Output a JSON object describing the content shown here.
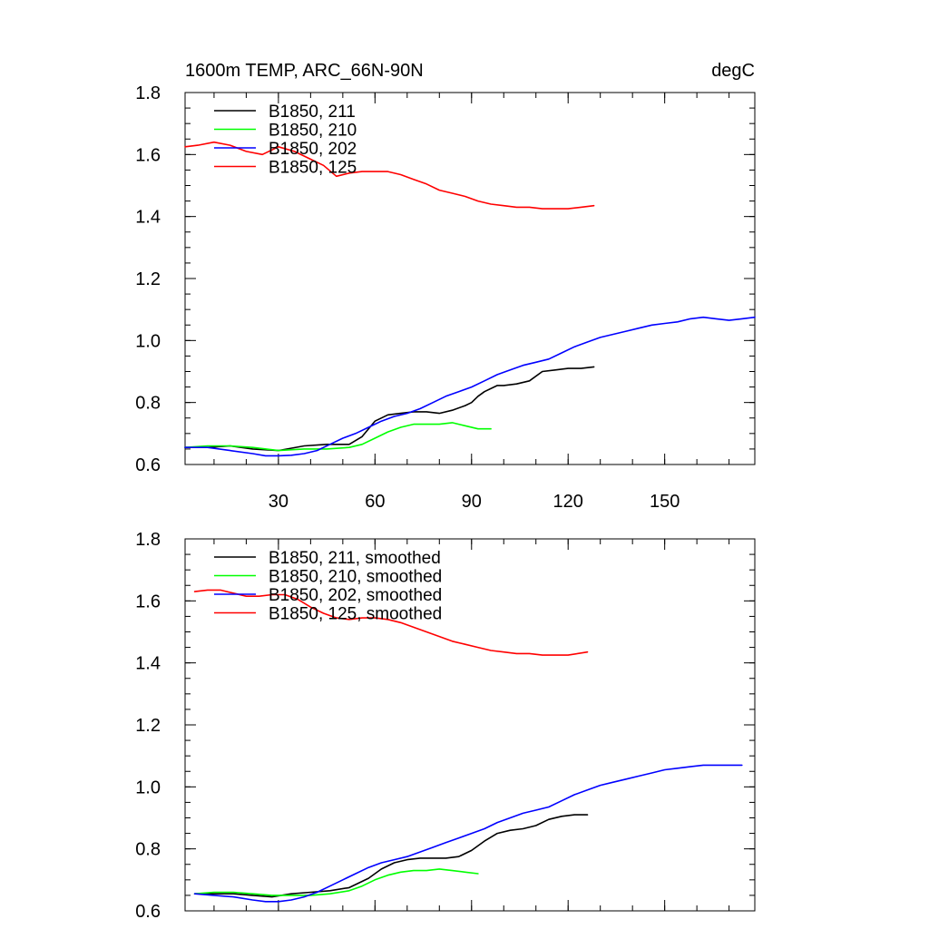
{
  "chart_data": [
    {
      "type": "line",
      "title": "1600m TEMP, ARC_66N-90N",
      "units": "degC",
      "xlim": [
        1,
        178
      ],
      "ylim": [
        0.6,
        1.8
      ],
      "xticks": [
        30,
        60,
        90,
        120,
        150
      ],
      "xtick_labels": [
        "30",
        "60",
        "90",
        "120",
        "150"
      ],
      "yticks": [
        0.6,
        0.8,
        1.0,
        1.2,
        1.4,
        1.6,
        1.8
      ],
      "ytick_labels": [
        "0.6",
        "0.8",
        "1.0",
        "1.2",
        "1.4",
        "1.6",
        "1.8"
      ],
      "legend_position": "top-left",
      "series": [
        {
          "name": "B1850, 211",
          "color": "#000000",
          "x": [
            1,
            8,
            15,
            22,
            30,
            38,
            45,
            52,
            56,
            60,
            64,
            68,
            72,
            76,
            80,
            84,
            88,
            90,
            92,
            94,
            98,
            100,
            104,
            108,
            112,
            116,
            120,
            124,
            128
          ],
          "y": [
            0.655,
            0.655,
            0.66,
            0.65,
            0.645,
            0.66,
            0.665,
            0.665,
            0.69,
            0.74,
            0.76,
            0.765,
            0.77,
            0.77,
            0.765,
            0.775,
            0.79,
            0.8,
            0.82,
            0.835,
            0.855,
            0.855,
            0.86,
            0.87,
            0.9,
            0.905,
            0.91,
            0.91,
            0.915
          ]
        },
        {
          "name": "B1850, 210",
          "color": "#00ff00",
          "x": [
            1,
            8,
            15,
            22,
            30,
            38,
            45,
            52,
            56,
            60,
            64,
            68,
            72,
            76,
            80,
            84,
            88,
            92,
            96
          ],
          "y": [
            0.655,
            0.66,
            0.66,
            0.655,
            0.645,
            0.65,
            0.65,
            0.655,
            0.665,
            0.685,
            0.705,
            0.72,
            0.73,
            0.73,
            0.73,
            0.735,
            0.725,
            0.715,
            0.715
          ]
        },
        {
          "name": "B1850, 202",
          "color": "#0000ff",
          "x": [
            1,
            8,
            15,
            22,
            26,
            30,
            34,
            38,
            42,
            46,
            50,
            54,
            58,
            62,
            66,
            70,
            74,
            78,
            82,
            86,
            90,
            94,
            98,
            102,
            106,
            110,
            114,
            118,
            122,
            126,
            130,
            134,
            138,
            142,
            146,
            150,
            154,
            158,
            162,
            166,
            170,
            174,
            178
          ],
          "y": [
            0.655,
            0.655,
            0.645,
            0.635,
            0.628,
            0.628,
            0.63,
            0.635,
            0.645,
            0.665,
            0.685,
            0.7,
            0.72,
            0.74,
            0.755,
            0.765,
            0.78,
            0.8,
            0.82,
            0.835,
            0.85,
            0.87,
            0.89,
            0.905,
            0.92,
            0.93,
            0.94,
            0.96,
            0.98,
            0.995,
            1.01,
            1.02,
            1.03,
            1.04,
            1.05,
            1.055,
            1.06,
            1.07,
            1.075,
            1.07,
            1.065,
            1.07,
            1.075
          ]
        },
        {
          "name": "B1850, 125",
          "color": "#ff0000",
          "x": [
            1,
            5,
            10,
            15,
            20,
            25,
            30,
            35,
            40,
            44,
            48,
            52,
            56,
            60,
            64,
            68,
            72,
            76,
            80,
            84,
            88,
            92,
            96,
            100,
            104,
            108,
            112,
            116,
            120,
            124,
            128
          ],
          "y": [
            1.625,
            1.63,
            1.64,
            1.63,
            1.61,
            1.6,
            1.625,
            1.61,
            1.585,
            1.565,
            1.53,
            1.54,
            1.545,
            1.545,
            1.545,
            1.535,
            1.52,
            1.505,
            1.485,
            1.475,
            1.465,
            1.45,
            1.44,
            1.435,
            1.43,
            1.43,
            1.425,
            1.425,
            1.425,
            1.43,
            1.435
          ]
        }
      ]
    },
    {
      "type": "line",
      "xlim": [
        1,
        178
      ],
      "ylim": [
        0.6,
        1.8
      ],
      "xticks": [
        30,
        60,
        90,
        120,
        150
      ],
      "xtick_labels": [],
      "yticks": [
        0.6,
        0.8,
        1.0,
        1.2,
        1.4,
        1.6,
        1.8
      ],
      "ytick_labels": [
        "0.6",
        "0.8",
        "1.0",
        "1.2",
        "1.4",
        "1.6",
        "1.8"
      ],
      "legend_position": "top-left",
      "series": [
        {
          "name": "B1850, 211, smoothed",
          "color": "#000000",
          "x": [
            4,
            10,
            16,
            22,
            28,
            34,
            40,
            46,
            52,
            58,
            62,
            66,
            70,
            74,
            78,
            82,
            86,
            90,
            94,
            98,
            102,
            106,
            110,
            114,
            118,
            122,
            126
          ],
          "y": [
            0.655,
            0.655,
            0.655,
            0.65,
            0.645,
            0.655,
            0.66,
            0.665,
            0.675,
            0.705,
            0.735,
            0.755,
            0.765,
            0.77,
            0.77,
            0.77,
            0.775,
            0.795,
            0.825,
            0.85,
            0.86,
            0.865,
            0.875,
            0.895,
            0.905,
            0.91,
            0.91
          ]
        },
        {
          "name": "B1850, 210, smoothed",
          "color": "#00ff00",
          "x": [
            4,
            10,
            16,
            22,
            28,
            34,
            40,
            46,
            52,
            56,
            60,
            64,
            68,
            72,
            76,
            80,
            84,
            88,
            92
          ],
          "y": [
            0.655,
            0.66,
            0.66,
            0.655,
            0.65,
            0.65,
            0.65,
            0.655,
            0.665,
            0.68,
            0.7,
            0.715,
            0.725,
            0.73,
            0.73,
            0.735,
            0.73,
            0.725,
            0.72
          ]
        },
        {
          "name": "B1850, 202, smoothed",
          "color": "#0000ff",
          "x": [
            4,
            10,
            16,
            22,
            26,
            30,
            34,
            38,
            42,
            46,
            50,
            54,
            58,
            62,
            66,
            70,
            74,
            78,
            82,
            86,
            90,
            94,
            98,
            102,
            106,
            110,
            114,
            118,
            122,
            126,
            130,
            134,
            138,
            142,
            146,
            150,
            154,
            158,
            162,
            166,
            170,
            174
          ],
          "y": [
            0.655,
            0.65,
            0.645,
            0.635,
            0.63,
            0.63,
            0.635,
            0.645,
            0.66,
            0.68,
            0.7,
            0.72,
            0.74,
            0.755,
            0.765,
            0.775,
            0.79,
            0.805,
            0.82,
            0.835,
            0.85,
            0.865,
            0.885,
            0.9,
            0.915,
            0.925,
            0.935,
            0.955,
            0.975,
            0.99,
            1.005,
            1.015,
            1.025,
            1.035,
            1.045,
            1.055,
            1.06,
            1.065,
            1.07,
            1.07,
            1.07,
            1.07
          ]
        },
        {
          "name": "B1850, 125, smoothed",
          "color": "#ff0000",
          "x": [
            4,
            8,
            12,
            16,
            20,
            24,
            28,
            32,
            36,
            40,
            44,
            48,
            52,
            56,
            60,
            64,
            68,
            72,
            76,
            80,
            84,
            88,
            92,
            96,
            100,
            104,
            108,
            112,
            116,
            120,
            126
          ],
          "y": [
            1.63,
            1.635,
            1.635,
            1.625,
            1.615,
            1.615,
            1.62,
            1.62,
            1.605,
            1.58,
            1.56,
            1.545,
            1.54,
            1.545,
            1.545,
            1.54,
            1.53,
            1.515,
            1.5,
            1.485,
            1.47,
            1.46,
            1.45,
            1.44,
            1.435,
            1.43,
            1.43,
            1.425,
            1.425,
            1.425,
            1.435
          ]
        }
      ]
    }
  ]
}
